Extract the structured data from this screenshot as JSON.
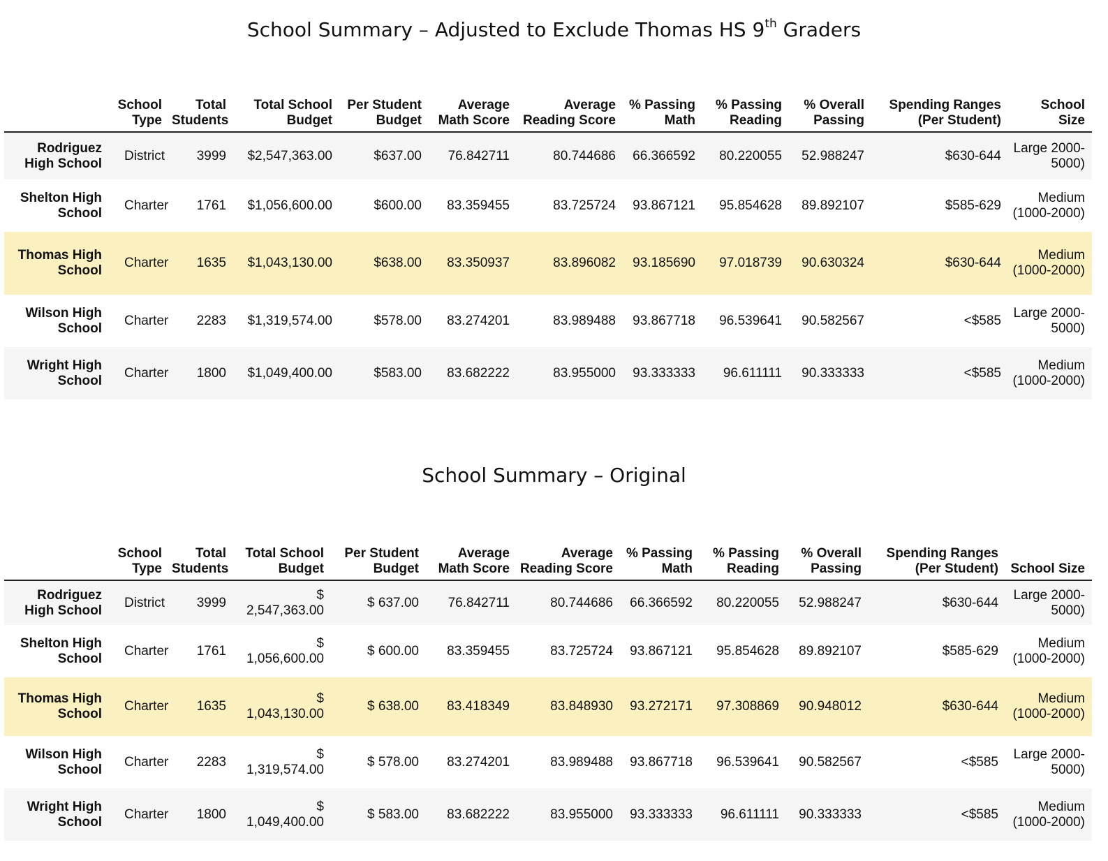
{
  "chart_data": [
    {
      "type": "table",
      "title_main": "School Summary – Adjusted to Exclude Thomas HS 9",
      "title_sup": "th",
      "title_tail": " Graders",
      "columns": [
        "School Type",
        "Total Students",
        "Total School Budget",
        "Per Student Budget",
        "Average Math Score",
        "Average Reading Score",
        "% Passing Math",
        "% Passing Reading",
        "% Overall Passing",
        "Spending Ranges (Per Student)",
        "School Size"
      ],
      "rows": [
        {
          "name": "Rodriguez High School",
          "type": "District",
          "students": "3999",
          "budget": "$2,547,363.00",
          "per_student": "$637.00",
          "math": "76.842711",
          "reading": "80.744686",
          "pass_math": "66.366592",
          "pass_reading": "80.220055",
          "overall": "52.988247",
          "spending": "$630-644",
          "size": "Large 2000-5000)"
        },
        {
          "name": "Shelton High School",
          "type": "Charter",
          "students": "1761",
          "budget": "$1,056,600.00",
          "per_student": "$600.00",
          "math": "83.359455",
          "reading": "83.725724",
          "pass_math": "93.867121",
          "pass_reading": "95.854628",
          "overall": "89.892107",
          "spending": "$585-629",
          "size": "Medium (1000-2000)"
        },
        {
          "name": "Thomas High School",
          "type": "Charter",
          "students": "1635",
          "budget": "$1,043,130.00",
          "per_student": "$638.00",
          "math": "83.350937",
          "reading": "83.896082",
          "pass_math": "93.185690",
          "pass_reading": "97.018739",
          "overall": "90.630324",
          "spending": "$630-644",
          "size": "Medium (1000-2000)"
        },
        {
          "name": "Wilson High School",
          "type": "Charter",
          "students": "2283",
          "budget": "$1,319,574.00",
          "per_student": "$578.00",
          "math": "83.274201",
          "reading": "83.989488",
          "pass_math": "93.867718",
          "pass_reading": "96.539641",
          "overall": "90.582567",
          "spending": "<$585",
          "size": "Large 2000-5000)"
        },
        {
          "name": "Wright High School",
          "type": "Charter",
          "students": "1800",
          "budget": "$1,049,400.00",
          "per_student": "$583.00",
          "math": "83.682222",
          "reading": "83.955000",
          "pass_math": "93.333333",
          "pass_reading": "96.611111",
          "overall": "90.333333",
          "spending": "<$585",
          "size": "Medium (1000-2000)"
        }
      ],
      "highlight_row": "Thomas High School",
      "highlight_color": "#fbf0c0"
    },
    {
      "type": "table",
      "title_main": "School Summary – Original",
      "columns": [
        "School Type",
        "Total Students",
        "Total School Budget",
        "Per Student Budget",
        "Average Math Score",
        "Average Reading Score",
        "% Passing Math",
        "% Passing Reading",
        "% Overall Passing",
        "Spending Ranges (Per Student)",
        "School Size"
      ],
      "rows": [
        {
          "name": "Rodriguez High School",
          "type": "District",
          "students": "3999",
          "budget_cur": "$",
          "budget_num": "2,547,363.00",
          "per_student": "$ 637.00",
          "math": "76.842711",
          "reading": "80.744686",
          "pass_math": "66.366592",
          "pass_reading": "80.220055",
          "overall": "52.988247",
          "spending": "$630-644",
          "size": "Large 2000-5000)"
        },
        {
          "name": "Shelton High School",
          "type": "Charter",
          "students": "1761",
          "budget_cur": "$",
          "budget_num": "1,056,600.00",
          "per_student": "$ 600.00",
          "math": "83.359455",
          "reading": "83.725724",
          "pass_math": "93.867121",
          "pass_reading": "95.854628",
          "overall": "89.892107",
          "spending": "$585-629",
          "size": "Medium (1000-2000)"
        },
        {
          "name": "Thomas High School",
          "type": "Charter",
          "students": "1635",
          "budget_cur": "$",
          "budget_num": "1,043,130.00",
          "per_student": "$ 638.00",
          "math": "83.418349",
          "reading": "83.848930",
          "pass_math": "93.272171",
          "pass_reading": "97.308869",
          "overall": "90.948012",
          "spending": "$630-644",
          "size": "Medium (1000-2000)"
        },
        {
          "name": "Wilson High School",
          "type": "Charter",
          "students": "2283",
          "budget_cur": "$",
          "budget_num": "1,319,574.00",
          "per_student": "$ 578.00",
          "math": "83.274201",
          "reading": "83.989488",
          "pass_math": "93.867718",
          "pass_reading": "96.539641",
          "overall": "90.582567",
          "spending": "<$585",
          "size": "Large 2000-5000)"
        },
        {
          "name": "Wright High School",
          "type": "Charter",
          "students": "1800",
          "budget_cur": "$",
          "budget_num": "1,049,400.00",
          "per_student": "$ 583.00",
          "math": "83.682222",
          "reading": "83.955000",
          "pass_math": "93.333333",
          "pass_reading": "96.611111",
          "overall": "90.333333",
          "spending": "<$585",
          "size": "Medium (1000-2000)"
        }
      ],
      "highlight_row": "Thomas High School",
      "highlight_color": "#fbf0c0"
    }
  ]
}
